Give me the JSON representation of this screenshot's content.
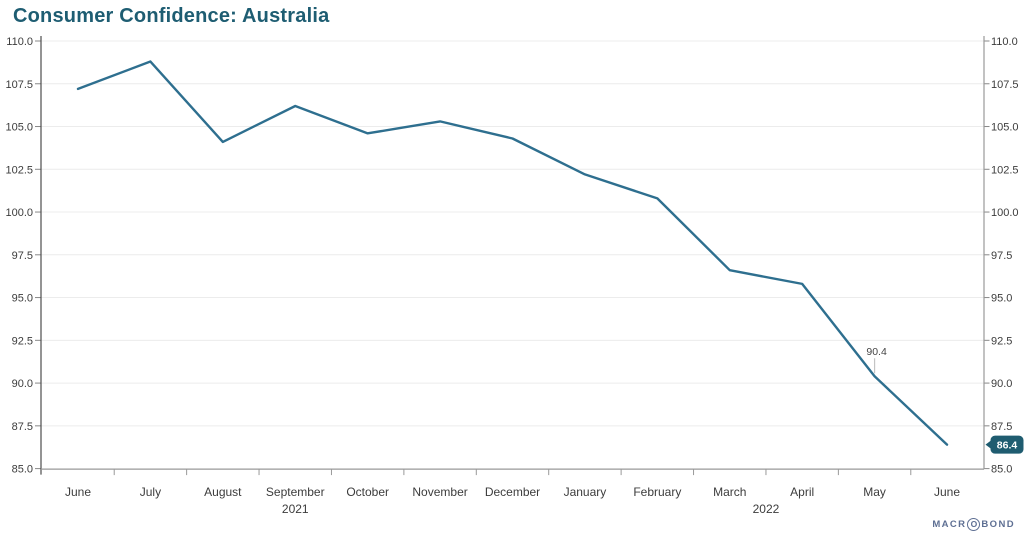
{
  "header": {
    "title": "Consumer Confidence: Australia"
  },
  "footer": {
    "logo": {
      "part1": "MACR",
      "ringed_letter": "O",
      "part2": "BOND"
    }
  },
  "chart_data": {
    "type": "line",
    "title": "Consumer Confidence: Australia",
    "x_categories": [
      "June",
      "July",
      "August",
      "September",
      "October",
      "November",
      "December",
      "January",
      "February",
      "March",
      "April",
      "May",
      "June"
    ],
    "year_rows": [
      {
        "label": "2021",
        "from_index": 0,
        "to_index": 6
      },
      {
        "label": "2022",
        "from_index": 7,
        "to_index": 12
      }
    ],
    "values": [
      107.2,
      108.8,
      104.1,
      106.2,
      104.6,
      105.3,
      104.3,
      102.2,
      100.8,
      96.6,
      95.8,
      90.4,
      86.4
    ],
    "ylim": [
      85.0,
      110.0
    ],
    "ytick_step": 2.5,
    "ytick_decimals": 1,
    "grid": true,
    "axes_mirrored": true,
    "point_annotations": [
      {
        "x_index": 11,
        "text": "90.4",
        "style": "callout"
      },
      {
        "x_index": 12,
        "text": "86.4",
        "style": "badge"
      }
    ],
    "colors": {
      "line": "#2e6f8f",
      "title": "#1e5d72",
      "badge_bg": "#1f5c70",
      "badge_text": "#ffffff",
      "grid": "#ececec",
      "axis_dark": "#4d4d4d",
      "axis_light": "#999999",
      "tick": "#888888",
      "label": "#3c3c3c",
      "callout": "#c4c4c4",
      "callout_text": "#444444"
    }
  }
}
